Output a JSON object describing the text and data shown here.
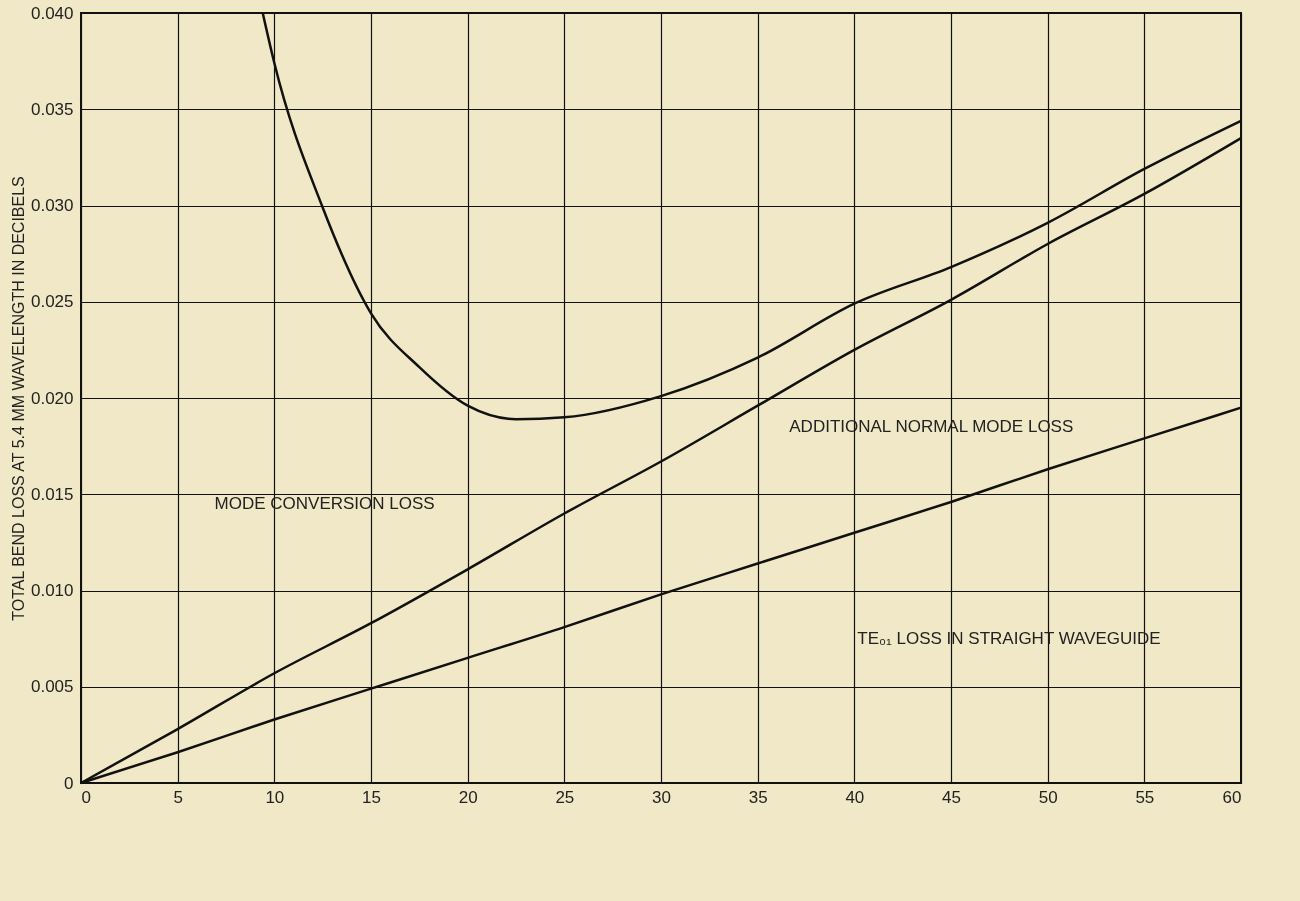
{
  "chart_data": {
    "type": "line",
    "ylabel": "TOTAL BEND LOSS AT 5.4 MM WAVELENGTH IN DECIBELS",
    "xlim": [
      0,
      60
    ],
    "xticks": [
      0,
      5,
      10,
      15,
      20,
      25,
      30,
      35,
      40,
      45,
      50,
      55,
      60
    ],
    "ylim": [
      0,
      0.04
    ],
    "yticks": [
      {
        "value": 0,
        "label": "0"
      },
      {
        "value": 0.005,
        "label": "0.005"
      },
      {
        "value": 0.01,
        "label": "0.010"
      },
      {
        "value": 0.015,
        "label": "0.015"
      },
      {
        "value": 0.02,
        "label": "0.020"
      },
      {
        "value": 0.025,
        "label": "0.025"
      },
      {
        "value": 0.03,
        "label": "0.030"
      },
      {
        "value": 0.035,
        "label": "0.035"
      },
      {
        "value": 0.04,
        "label": "0.040"
      }
    ],
    "grid": true,
    "legend": false,
    "series": [
      {
        "color": "#111111",
        "x": [
          9.4,
          10,
          12.5,
          15,
          17.5,
          20,
          22.5,
          25,
          30,
          35,
          40,
          45,
          50,
          55,
          60
        ],
        "values": [
          0.04,
          0.0374,
          0.0299,
          0.0244,
          0.0216,
          0.0196,
          0.0189,
          0.019,
          0.0201,
          0.0221,
          0.0249,
          0.0268,
          0.0291,
          0.0319,
          0.0344
        ]
      },
      {
        "color": "#111111",
        "x": [
          0,
          5,
          10,
          15,
          20,
          25,
          30,
          35,
          40,
          45,
          50,
          55,
          60
        ],
        "values": [
          0,
          0.0028,
          0.0057,
          0.0083,
          0.0111,
          0.014,
          0.0167,
          0.0196,
          0.0225,
          0.0251,
          0.028,
          0.0306,
          0.0335
        ]
      },
      {
        "color": "#111111",
        "x": [
          0,
          5,
          10,
          15,
          20,
          25,
          30,
          35,
          40,
          45,
          50,
          55,
          60
        ],
        "values": [
          0,
          0.0016,
          0.0033,
          0.0049,
          0.0065,
          0.0081,
          0.0098,
          0.0114,
          0.013,
          0.0146,
          0.0163,
          0.0179,
          0.0195
        ]
      }
    ],
    "annotations": [
      "MODE CONVERSION LOSS",
      "ADDITIONAL NORMAL MODE LOSS",
      "TE₀₁ LOSS IN STRAIGHT WAVEGUIDE"
    ]
  }
}
